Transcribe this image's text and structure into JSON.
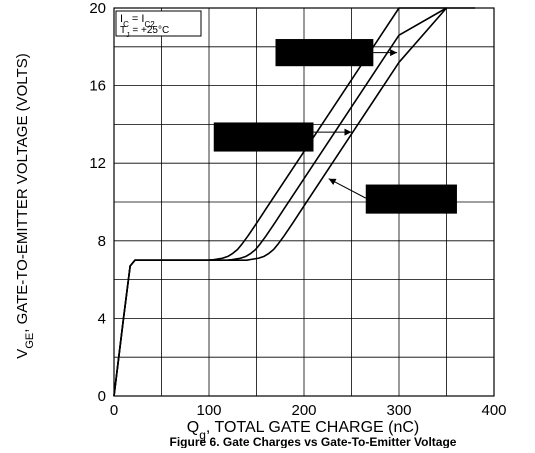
{
  "chart_data": {
    "type": "line",
    "title": "Figure 6. Gate Charges vs Gate-To-Emitter Voltage",
    "xlabel": {
      "main": "Q",
      "sub": "g",
      "rest": ", TOTAL GATE CHARGE (nC)"
    },
    "ylabel": {
      "main": "V",
      "sub": "GE",
      "rest": ", GATE-TO-EMITTER VOLTAGE (VOLTS)"
    },
    "xlim": [
      0,
      400
    ],
    "ylim": [
      0,
      20
    ],
    "x_ticks": [
      0,
      100,
      200,
      300,
      400
    ],
    "y_ticks": [
      0,
      4,
      8,
      12,
      16,
      20
    ],
    "x_tick_labels": [
      "0",
      "100",
      "200",
      "300",
      "400"
    ],
    "y_tick_labels": [
      "0",
      "4",
      "8",
      "12",
      "16",
      "20"
    ],
    "x_grid_step": 50,
    "y_grid_step": 2,
    "grid": true,
    "conditions": {
      "line1": {
        "main": "I",
        "sub": "C",
        "eq": " = I",
        "sub2": "C2"
      },
      "line2": {
        "main": "T",
        "sub": "J",
        "rest": " = +25°C"
      }
    },
    "series": [
      {
        "x": [
          0,
          10,
          17,
          22,
          60,
          100,
          105,
          114,
          120,
          125,
          130,
          135,
          141,
          150,
          160,
          200,
          250,
          300,
          350
        ],
        "y": [
          0,
          4,
          6.7,
          7.0,
          7.0,
          7.01,
          7.03,
          7.1,
          7.2,
          7.35,
          7.55,
          7.85,
          8.25,
          8.9,
          9.65,
          12.6,
          16.3,
          20.0,
          20.0
        ]
      },
      {
        "x": [
          0,
          10,
          17,
          22,
          60,
          100,
          120,
          124,
          133,
          139,
          144,
          149,
          154,
          160,
          169,
          179,
          200,
          250,
          300,
          350
        ],
        "y": [
          0,
          4,
          6.7,
          7.0,
          7.0,
          7.0,
          7.01,
          7.03,
          7.1,
          7.2,
          7.35,
          7.55,
          7.85,
          8.25,
          8.9,
          9.65,
          11.2,
          14.9,
          18.6,
          20.0
        ]
      },
      {
        "x": [
          0,
          10,
          17,
          22,
          60,
          100,
          140,
          143,
          152,
          158,
          163,
          168,
          173,
          179,
          188,
          198,
          250,
          300,
          350,
          380
        ],
        "y": [
          0,
          4,
          6.7,
          7.0,
          7.0,
          7.0,
          7.0,
          7.03,
          7.1,
          7.2,
          7.35,
          7.55,
          7.85,
          8.25,
          8.9,
          9.65,
          13.5,
          17.2,
          20.0,
          20.0
        ]
      }
    ],
    "annotation_boxes": [
      {
        "x1": 170,
        "y1": 18.4,
        "x2": 273,
        "y2": 17.0,
        "arrow_x": 298,
        "arrow_y": 17.7,
        "arrow_from_x": 273,
        "arrow_from_y": 17.7
      },
      {
        "x1": 105,
        "y1": 14.1,
        "x2": 210,
        "y2": 12.6,
        "arrow_x": 250,
        "arrow_y": 13.6,
        "arrow_from_x": 210,
        "arrow_from_y": 13.6
      },
      {
        "x1": 265,
        "y1": 10.9,
        "x2": 361,
        "y2": 9.4,
        "arrow_x": 226,
        "arrow_y": 11.2,
        "arrow_from_x": 265,
        "arrow_from_y": 10.2
      }
    ]
  }
}
